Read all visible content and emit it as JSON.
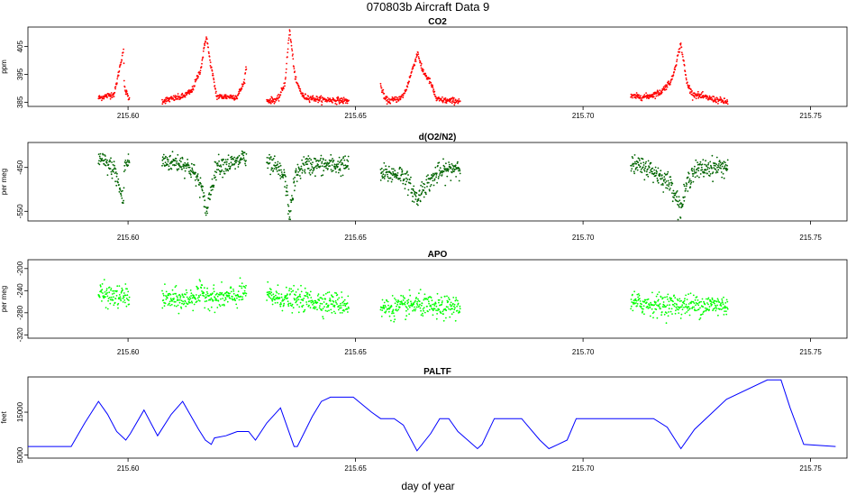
{
  "figure_title": "070803b   Aircraft Data 9",
  "xlabel": "day of year",
  "chart_data": [
    {
      "type": "scatter",
      "title": "CO2",
      "ylabel": "ppm",
      "color": "#ff0000",
      "xlim": [
        215.578,
        215.758
      ],
      "ylim": [
        383.5,
        412
      ],
      "yticks": [
        385,
        395,
        405
      ],
      "xticks": [
        215.6,
        215.65,
        215.7,
        215.75
      ],
      "xtick_labels": [
        "215.60",
        "215.65",
        "215.70",
        "215.75"
      ],
      "series_anchors": [
        {
          "x": [
            215.5935,
            215.597,
            215.599,
            215.5992,
            215.6003
          ],
          "y": [
            386.5,
            388,
            404,
            390,
            386
          ]
        },
        {
          "x": [
            215.6075,
            215.612,
            215.614,
            215.616,
            215.6172,
            215.618,
            215.6195,
            215.624,
            215.6255,
            215.626
          ],
          "y": [
            385.5,
            387,
            389,
            397,
            409,
            400,
            387,
            387,
            392,
            398
          ]
        },
        {
          "x": [
            215.6305,
            215.633,
            215.6345,
            215.6355,
            215.6368,
            215.6385,
            215.642,
            215.6485
          ],
          "y": [
            385.5,
            386,
            392,
            411,
            393,
            387,
            386,
            385.5
          ]
        },
        {
          "x": [
            215.6555,
            215.6565,
            215.6575,
            215.66,
            215.661,
            215.6637,
            215.6645,
            215.6665,
            215.6678,
            215.6705,
            215.673
          ],
          "y": [
            391,
            386,
            385.5,
            386.5,
            389,
            403,
            397,
            392,
            386,
            385.5,
            385.5
          ]
        },
        {
          "x": [
            215.7105,
            215.714,
            215.717,
            215.7195,
            215.7215,
            215.7228,
            215.724,
            215.7275,
            215.7318
          ],
          "y": [
            387,
            387,
            388.5,
            393,
            406,
            392,
            388,
            386.5,
            385
          ]
        }
      ],
      "noise": 0.55
    },
    {
      "type": "scatter",
      "title": "d(O2/N2)",
      "ylabel": "per meg",
      "color": "#006400",
      "xlim": [
        215.578,
        215.758
      ],
      "ylim": [
        -572,
        -393
      ],
      "yticks": [
        -550,
        -450
      ],
      "xticks": [
        215.6,
        215.65,
        215.7,
        215.75
      ],
      "xtick_labels": [
        "215.60",
        "215.65",
        "215.70",
        "215.75"
      ],
      "series_anchors": [
        {
          "x": [
            215.5935,
            215.597,
            215.599,
            215.5992,
            215.6003
          ],
          "y": [
            -430,
            -455,
            -530,
            -445,
            -437
          ]
        },
        {
          "x": [
            215.6075,
            215.612,
            215.614,
            215.616,
            215.6172,
            215.618,
            215.6195,
            215.624,
            215.6255,
            215.626
          ],
          "y": [
            -435,
            -440,
            -455,
            -490,
            -555,
            -510,
            -445,
            -440,
            -420,
            -445
          ]
        },
        {
          "x": [
            215.6305,
            215.633,
            215.6345,
            215.6355,
            215.6368,
            215.6385,
            215.642,
            215.6485
          ],
          "y": [
            -440,
            -455,
            -475,
            -560,
            -470,
            -445,
            -445,
            -445
          ]
        },
        {
          "x": [
            215.6555,
            215.66,
            215.661,
            215.6637,
            215.6645,
            215.6665,
            215.6678,
            215.6705,
            215.673
          ],
          "y": [
            -465,
            -465,
            -475,
            -525,
            -500,
            -480,
            -465,
            -455,
            -445
          ]
        },
        {
          "x": [
            215.7105,
            215.714,
            215.717,
            215.7195,
            215.7215,
            215.7228,
            215.724,
            215.7275,
            215.7318
          ],
          "y": [
            -445,
            -450,
            -470,
            -490,
            -545,
            -490,
            -460,
            -450,
            -448
          ]
        }
      ],
      "noise": 11
    },
    {
      "type": "scatter",
      "title": "APO",
      "ylabel": "per meg",
      "color": "#00ff00",
      "xlim": [
        215.578,
        215.758
      ],
      "ylim": [
        -326,
        -184
      ],
      "yticks": [
        -320,
        -280,
        -240,
        -200
      ],
      "xticks": [
        215.6,
        215.65,
        215.7,
        215.75
      ],
      "xtick_labels": [
        "215.60",
        "215.65",
        "215.70",
        "215.75"
      ],
      "series_anchors": [
        {
          "x": [
            215.5935,
            215.597,
            215.6003
          ],
          "y": [
            -245,
            -252,
            -250
          ]
        },
        {
          "x": [
            215.6075,
            215.612,
            215.6165,
            215.6195,
            215.624,
            215.626
          ],
          "y": [
            -255,
            -258,
            -245,
            -255,
            -250,
            -240
          ]
        },
        {
          "x": [
            215.6305,
            215.635,
            215.642,
            215.6485
          ],
          "y": [
            -250,
            -255,
            -260,
            -265
          ]
        },
        {
          "x": [
            215.6555,
            215.66,
            215.6637,
            215.6678,
            215.673
          ],
          "y": [
            -272,
            -270,
            -265,
            -272,
            -268
          ]
        },
        {
          "x": [
            215.7105,
            215.716,
            215.7215,
            215.7275,
            215.7318
          ],
          "y": [
            -262,
            -265,
            -266,
            -266,
            -266
          ]
        }
      ],
      "noise": 10
    },
    {
      "type": "line",
      "title": "PALTF",
      "ylabel": "feet",
      "color": "#0000ff",
      "xlim": [
        215.578,
        215.758
      ],
      "ylim": [
        4300,
        23200
      ],
      "yticks": [
        5000,
        15000
      ],
      "xticks": [
        215.6,
        215.65,
        215.7,
        215.75
      ],
      "xtick_labels": [
        "215.60",
        "215.65",
        "215.70",
        "215.75"
      ],
      "x": [
        215.578,
        215.5875,
        215.5905,
        215.5935,
        215.5955,
        215.5975,
        215.5995,
        215.6005,
        215.6035,
        215.6065,
        215.6095,
        215.612,
        215.6155,
        215.617,
        215.6183,
        215.619,
        215.6215,
        215.624,
        215.6265,
        215.628,
        215.6305,
        215.6335,
        215.6365,
        215.6372,
        215.6405,
        215.6425,
        215.6445,
        215.6495,
        215.6535,
        215.6555,
        215.6585,
        215.6605,
        215.6635,
        215.6665,
        215.6685,
        215.6705,
        215.6725,
        215.6768,
        215.6778,
        215.6805,
        215.6865,
        215.6905,
        215.6925,
        215.6945,
        215.6965,
        215.6985,
        215.7155,
        215.7185,
        215.7215,
        215.7245,
        215.7315,
        215.7405,
        215.7435,
        215.7455,
        215.7485,
        215.7555
      ],
      "y": [
        7000,
        7000,
        12500,
        17500,
        14500,
        10500,
        8500,
        10000,
        15500,
        9500,
        14500,
        17500,
        11000,
        8500,
        7500,
        9000,
        9500,
        10500,
        10500,
        8500,
        12500,
        16000,
        7000,
        7000,
        14000,
        17500,
        18500,
        18500,
        15000,
        13500,
        13500,
        12000,
        6000,
        10000,
        13500,
        13500,
        10500,
        6500,
        7500,
        13500,
        13500,
        8500,
        6500,
        7500,
        8500,
        13500,
        13500,
        11500,
        6500,
        11000,
        18000,
        22500,
        22500,
        16000,
        7500,
        7000
      ]
    }
  ]
}
